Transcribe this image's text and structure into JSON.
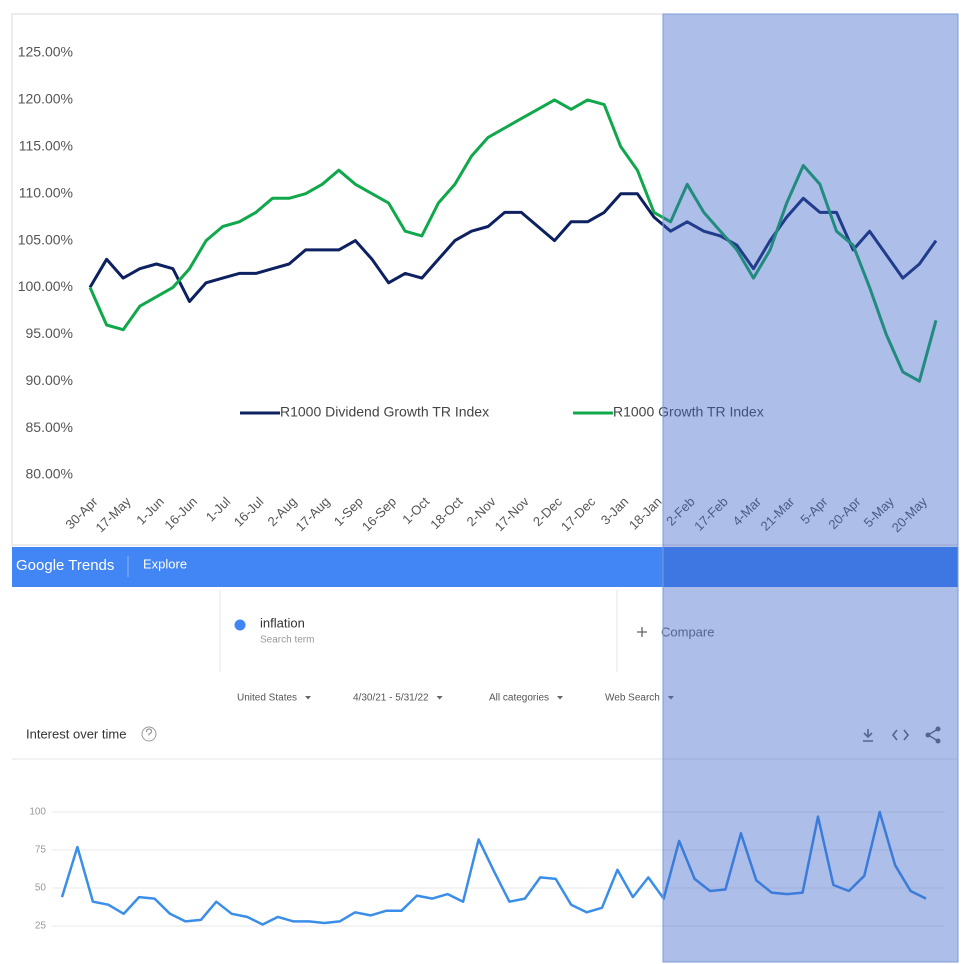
{
  "chart_data": [
    {
      "type": "line",
      "categories": [
        "30-Apr",
        null,
        "17-May",
        null,
        "1-Jun",
        null,
        "16-Jun",
        null,
        "1-Jul",
        null,
        "16-Jul",
        null,
        "2-Aug",
        null,
        "17-Aug",
        null,
        "1-Sep",
        null,
        "16-Sep",
        null,
        "1-Oct",
        null,
        "18-Oct",
        null,
        "2-Nov",
        null,
        "17-Nov",
        null,
        "2-Dec",
        null,
        "17-Dec",
        null,
        "3-Jan",
        null,
        "18-Jan",
        null,
        "2-Feb",
        null,
        "17-Feb",
        null,
        "4-Mar",
        null,
        "21-Mar",
        null,
        "5-Apr",
        null,
        "20-Apr",
        null,
        "5-May",
        null,
        "20-May",
        null
      ],
      "series": [
        {
          "name": "R1000 Dividend Growth TR Index",
          "color": "#0d2060",
          "values": [
            100,
            103,
            101,
            102,
            102.5,
            102,
            98.5,
            100.5,
            101,
            101.5,
            101.5,
            102,
            102.5,
            104,
            104,
            104,
            105,
            103,
            100.5,
            101.5,
            101,
            103,
            105,
            106,
            106.5,
            108,
            108,
            106.5,
            105,
            107,
            107,
            108,
            110,
            110,
            107.5,
            106,
            107,
            106,
            105.5,
            104.5,
            102,
            105,
            107.5,
            109.5,
            108,
            108,
            104,
            106,
            103.5,
            101,
            102.5,
            105
          ]
        },
        {
          "name": "R1000 Growth TR Index",
          "color": "#10a84b",
          "values": [
            100,
            96,
            95.5,
            98,
            99,
            100,
            102,
            105,
            106.5,
            107,
            108,
            109.5,
            109.5,
            110,
            111,
            112.5,
            111,
            110,
            109,
            106,
            105.5,
            109,
            111,
            114,
            116,
            117,
            118,
            119,
            120,
            119,
            120,
            119.5,
            115,
            112.5,
            108,
            107,
            111,
            108,
            106,
            104,
            101,
            104,
            109,
            113,
            111,
            106,
            104.5,
            100,
            95,
            91,
            90,
            96.5
          ]
        }
      ],
      "ylim": [
        79,
        126
      ],
      "yticks": [
        {
          "value": 80,
          "label": "80.00%"
        },
        {
          "value": 85,
          "label": "85.00%"
        },
        {
          "value": 90,
          "label": "90.00%"
        },
        {
          "value": 95,
          "label": "95.00%"
        },
        {
          "value": 100,
          "label": "100.00%"
        },
        {
          "value": 105,
          "label": "105.00%"
        },
        {
          "value": 110,
          "label": "110.00%"
        },
        {
          "value": 115,
          "label": "115.00%"
        },
        {
          "value": 120,
          "label": "120.00%"
        },
        {
          "value": 125,
          "label": "125.00%"
        }
      ],
      "grid": false
    },
    {
      "type": "line",
      "title": "Interest over time",
      "color": "#3b8ee8",
      "values": [
        44,
        77,
        41,
        39,
        33,
        44,
        43,
        33,
        28,
        29,
        41,
        33,
        31,
        26,
        31,
        28,
        28,
        27,
        28,
        34,
        32,
        35,
        35,
        45,
        43,
        46,
        41,
        82,
        61,
        41,
        43,
        57,
        56,
        39,
        34,
        37,
        62,
        44,
        57,
        43,
        81,
        56,
        48,
        49,
        86,
        55,
        47,
        46,
        47,
        97,
        52,
        48,
        58,
        100,
        65,
        48,
        43
      ],
      "ylim": [
        0,
        105
      ],
      "yticks": [
        25,
        50,
        75,
        100
      ],
      "grid": true
    }
  ],
  "trends": {
    "brand": "Google Trends",
    "nav": "Explore",
    "term": "inflation",
    "term_type": "Search term",
    "compare": "Compare",
    "filters": [
      "United States",
      "4/30/21 - 5/31/22",
      "All categories",
      "Web Search"
    ]
  }
}
